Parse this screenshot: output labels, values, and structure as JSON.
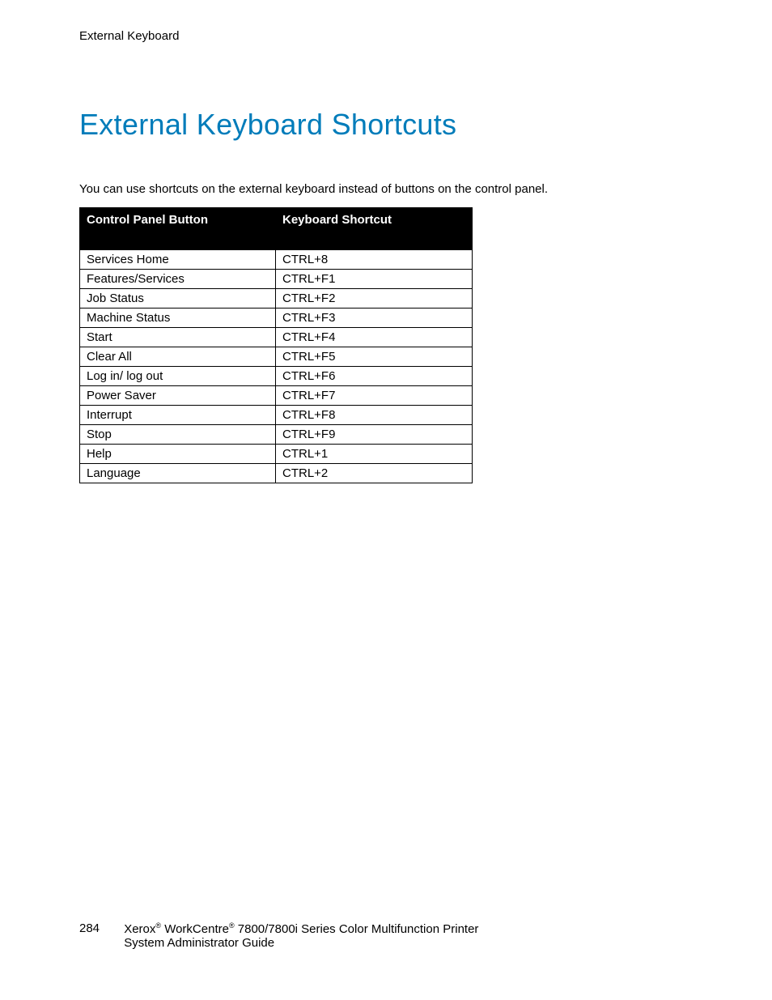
{
  "header": {
    "section": "External Keyboard"
  },
  "title": "External Keyboard Shortcuts",
  "intro": "You can use shortcuts on the external keyboard instead of buttons on the control panel.",
  "table": {
    "colors": {
      "header_bg": "#000000",
      "header_fg": "#ffffff",
      "border": "#000000",
      "row_bg": "#ffffff"
    },
    "columns": [
      "Control Panel Button",
      "Keyboard Shortcut"
    ],
    "rows": [
      [
        "Services Home",
        "CTRL+8"
      ],
      [
        "Features/Services",
        "CTRL+F1"
      ],
      [
        "Job Status",
        "CTRL+F2"
      ],
      [
        "Machine Status",
        "CTRL+F3"
      ],
      [
        "Start",
        "CTRL+F4"
      ],
      [
        "Clear All",
        "CTRL+F5"
      ],
      [
        "Log in/ log out",
        "CTRL+F6"
      ],
      [
        "Power Saver",
        "CTRL+F7"
      ],
      [
        "Interrupt",
        "CTRL+F8"
      ],
      [
        "Stop",
        "CTRL+F9"
      ],
      [
        "Help",
        "CTRL+1"
      ],
      [
        "Language",
        "CTRL+2"
      ]
    ]
  },
  "footer": {
    "page_number": "284",
    "brand": "Xerox",
    "reg": "®",
    "product": " WorkCentre",
    "series": " 7800/7800i Series Color Multifunction Printer",
    "line2": "System Administrator Guide"
  }
}
